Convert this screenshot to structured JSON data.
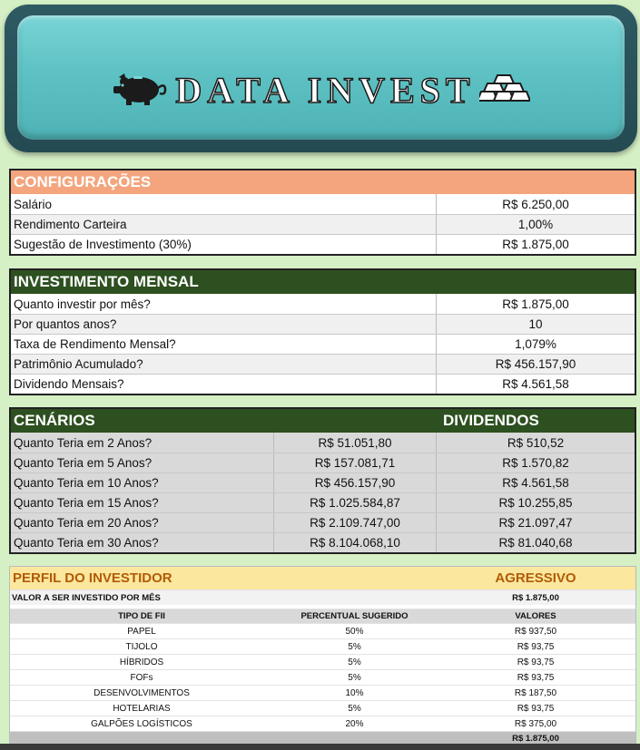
{
  "banner": {
    "title": "DATA INVEST"
  },
  "config": {
    "title": "CONFIGURAÇÕES",
    "rows": [
      {
        "label": "Salário",
        "value": "R$ 6.250,00"
      },
      {
        "label": "Rendimento Carteira",
        "value": "1,00%"
      },
      {
        "label": "Sugestão de Investimento (30%)",
        "value": "R$ 1.875,00"
      }
    ]
  },
  "monthly": {
    "title": "INVESTIMENTO MENSAL",
    "rows": [
      {
        "label": "Quanto investir por mês?",
        "value": "R$ 1.875,00"
      },
      {
        "label": "Por quantos anos?",
        "value": "10"
      },
      {
        "label": "Taxa de Rendimento Mensal?",
        "value": "1,079%"
      },
      {
        "label": "Patrimônio Acumulado?",
        "value": "R$ 456.157,90"
      },
      {
        "label": "Dividendo Mensais?",
        "value": "R$ 4.561,58"
      }
    ]
  },
  "scenarios": {
    "title": "CENÁRIOS",
    "dividends_title": "DIVIDENDOS",
    "rows": [
      {
        "label": "Quanto Teria em 2 Anos?",
        "total": "R$ 51.051,80",
        "dividend": "R$ 510,52"
      },
      {
        "label": "Quanto Teria em 5 Anos?",
        "total": "R$ 157.081,71",
        "dividend": "R$ 1.570,82"
      },
      {
        "label": "Quanto Teria em 10 Anos?",
        "total": "R$ 456.157,90",
        "dividend": "R$ 4.561,58"
      },
      {
        "label": "Quanto Teria em 15 Anos?",
        "total": "R$ 1.025.584,87",
        "dividend": "R$ 10.255,85"
      },
      {
        "label": "Quanto Teria em 20 Anos?",
        "total": "R$ 2.109.747,00",
        "dividend": "R$ 21.097,47"
      },
      {
        "label": "Quanto Teria em 30 Anos?",
        "total": "R$ 8.104.068,10",
        "dividend": "R$ 81.040,68"
      }
    ]
  },
  "profile": {
    "title": "PERFIL DO INVESTIDOR",
    "type": "AGRESSIVO",
    "amount_label": "VALOR A SER INVESTIDO POR MÊS",
    "amount_value": "R$ 1.875,00",
    "columns": [
      "TIPO DE FII",
      "PERCENTUAL SUGERIDO",
      "VALORES"
    ],
    "items": [
      {
        "type": "PAPEL",
        "percent": "50%",
        "value": "R$ 937,50"
      },
      {
        "type": "TIJOLO",
        "percent": "5%",
        "value": "R$ 93,75"
      },
      {
        "type": "HÍBRIDOS",
        "percent": "5%",
        "value": "R$ 93,75"
      },
      {
        "type": "FOFs",
        "percent": "5%",
        "value": "R$ 93,75"
      },
      {
        "type": "DESENVOLVIMENTOS",
        "percent": "10%",
        "value": "R$ 187,50"
      },
      {
        "type": "HOTELARIAS",
        "percent": "5%",
        "value": "R$ 93,75"
      },
      {
        "type": "GALPÕES LOGÍSTICOS",
        "percent": "20%",
        "value": "R$ 375,00"
      }
    ],
    "total": "R$ 1.875,00"
  },
  "colors": {
    "background": "#d6f0c6",
    "config_header": "#f4a57d",
    "green_header": "#2d5020",
    "profile_header": "#fbe79e",
    "profile_text": "#b25b06",
    "banner": "#5ec2c4"
  }
}
